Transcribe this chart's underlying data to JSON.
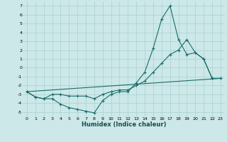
{
  "title": "",
  "xlabel": "Humidex (Indice chaleur)",
  "bg_color": "#cce8e8",
  "line_color": "#1a6b6b",
  "grid_color": "#aad0d0",
  "xlim": [
    -0.5,
    23.5
  ],
  "ylim": [
    -5.5,
    7.5
  ],
  "xticks": [
    0,
    1,
    2,
    3,
    4,
    5,
    6,
    7,
    8,
    9,
    10,
    11,
    12,
    13,
    14,
    15,
    16,
    17,
    18,
    19,
    20,
    21,
    22,
    23
  ],
  "yticks": [
    -5,
    -4,
    -3,
    -2,
    -1,
    0,
    1,
    2,
    3,
    4,
    5,
    6,
    7
  ],
  "series1_x": [
    0,
    1,
    2,
    3,
    4,
    5,
    6,
    7,
    8,
    9,
    10,
    11,
    12,
    13,
    14,
    15,
    16,
    17,
    18,
    19,
    20,
    21,
    22,
    23
  ],
  "series1_y": [
    -2.7,
    -3.3,
    -3.5,
    -3.5,
    -4.1,
    -4.5,
    -4.7,
    -4.9,
    -5.1,
    -3.7,
    -3.0,
    -2.7,
    -2.7,
    -1.7,
    -0.5,
    2.2,
    5.5,
    7.0,
    3.2,
    1.5,
    1.7,
    1.0,
    -1.2,
    -1.2
  ],
  "series2_x": [
    0,
    1,
    2,
    3,
    4,
    5,
    6,
    7,
    8,
    9,
    10,
    11,
    12,
    13,
    14,
    15,
    16,
    17,
    18,
    19,
    20,
    21,
    22,
    23
  ],
  "series2_y": [
    -2.7,
    -3.3,
    -3.5,
    -3.0,
    -3.0,
    -3.2,
    -3.2,
    -3.2,
    -3.5,
    -3.0,
    -2.7,
    -2.5,
    -2.5,
    -2.0,
    -1.5,
    -0.5,
    0.5,
    1.5,
    2.0,
    3.2,
    1.7,
    1.0,
    -1.2,
    -1.2
  ],
  "series3_x": [
    0,
    23
  ],
  "series3_y": [
    -2.7,
    -1.2
  ]
}
